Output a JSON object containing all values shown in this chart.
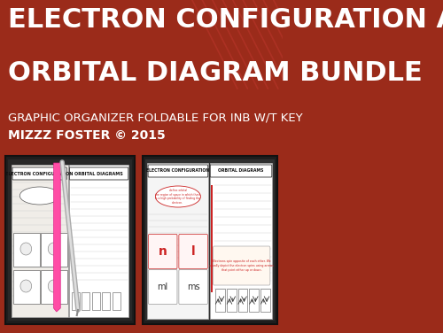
{
  "bg_color": "#9b2b1a",
  "title_line1": "ELECTRON CONFIGURATION AND",
  "title_line2": "ORBITAL DIAGRAM BUNDLE",
  "subtitle": "GRAPHIC ORGANIZER FOLDABLE FOR INB W/T KEY",
  "author": "MIZZZ FOSTER © 2015",
  "title_color": "#ffffff",
  "subtitle_color": "#ffffff",
  "author_color": "#ffffff",
  "title_fontsize": 22,
  "subtitle_fontsize": 9.5,
  "author_fontsize": 10,
  "stripe_color": "#b8352a",
  "photo_bg": "#1e1e1e",
  "page_cream": "#f0ede8",
  "page_white": "#ffffff",
  "text_dark": "#222222",
  "text_red": "#cc2222",
  "line_color": "#bbbbbb",
  "border_color": "#555555"
}
